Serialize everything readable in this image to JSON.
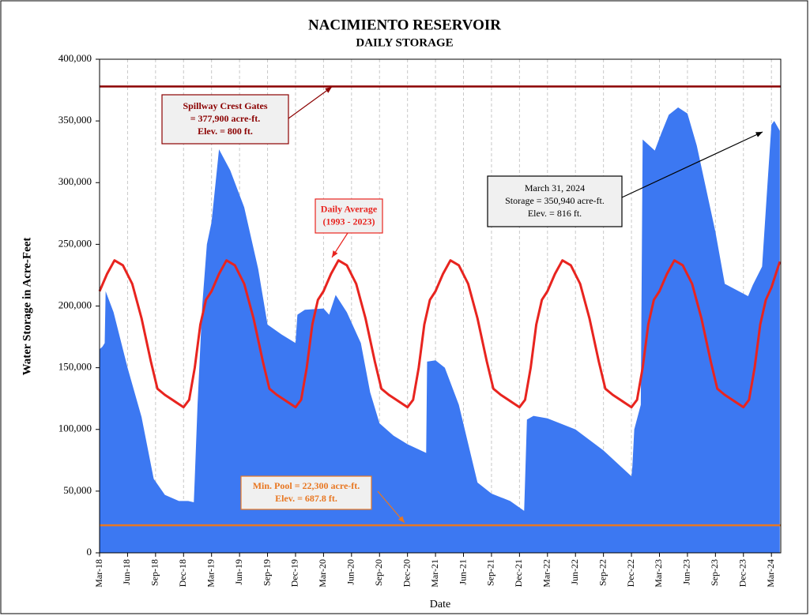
{
  "chart_data": {
    "type": "area",
    "title": "NACIMIENTO RESERVOIR",
    "subtitle": "DAILY STORAGE",
    "y_label": "Water Storage in Acre-Feet",
    "x_label": "Date",
    "xlim": [
      0,
      73
    ],
    "xticks": [
      {
        "value": 0,
        "label": "Mar-18"
      },
      {
        "value": 3,
        "label": "Jun-18"
      },
      {
        "value": 6,
        "label": "Sep-18"
      },
      {
        "value": 9,
        "label": "Dec-18"
      },
      {
        "value": 12,
        "label": "Mar-19"
      },
      {
        "value": 15,
        "label": "Jun-19"
      },
      {
        "value": 18,
        "label": "Sep-19"
      },
      {
        "value": 21,
        "label": "Dec-19"
      },
      {
        "value": 24,
        "label": "Mar-20"
      },
      {
        "value": 27,
        "label": "Jun-20"
      },
      {
        "value": 30,
        "label": "Sep-20"
      },
      {
        "value": 33,
        "label": "Dec-20"
      },
      {
        "value": 36,
        "label": "Mar-21"
      },
      {
        "value": 39,
        "label": "Jun-21"
      },
      {
        "value": 42,
        "label": "Sep-21"
      },
      {
        "value": 45,
        "label": "Dec-21"
      },
      {
        "value": 48,
        "label": "Mar-22"
      },
      {
        "value": 51,
        "label": "Jun-22"
      },
      {
        "value": 54,
        "label": "Sep-22"
      },
      {
        "value": 57,
        "label": "Dec-22"
      },
      {
        "value": 60,
        "label": "Mar-23"
      },
      {
        "value": 63,
        "label": "Jun-23"
      },
      {
        "value": 66,
        "label": "Sep-23"
      },
      {
        "value": 69,
        "label": "Dec-23"
      },
      {
        "value": 72,
        "label": "Mar-24"
      }
    ],
    "ylim": [
      0,
      400000
    ],
    "yticks": [
      0,
      {
        "value": 50000,
        "label": "50,000"
      },
      {
        "value": 100000,
        "label": "100,000"
      },
      {
        "value": 150000,
        "label": "150,000"
      },
      {
        "value": 200000,
        "label": "200,000"
      },
      {
        "value": 250000,
        "label": "250,000"
      },
      {
        "value": 300000,
        "label": "300,000"
      },
      {
        "value": 350000,
        "label": "350,000"
      },
      {
        "value": 400000,
        "label": "400,000"
      }
    ],
    "grid": true,
    "series": [
      {
        "type": "area",
        "color": "#3c78f2",
        "x": [
          0,
          0.3,
          0.55,
          0.65,
          1.5,
          3,
          4.5,
          5.8,
          7,
          8.5,
          9.5,
          10.1,
          10.2,
          10.5,
          11,
          11.5,
          12,
          12.8,
          14,
          15.5,
          17,
          18,
          19.5,
          21,
          21.2,
          22,
          24,
          24.6,
          25.3,
          26.5,
          28,
          29,
          30,
          31.5,
          33,
          35,
          35.1,
          36,
          37,
          38.5,
          40.5,
          42,
          44,
          45.5,
          45.8,
          46.5,
          48,
          51,
          54,
          57,
          57.1,
          57.3,
          58,
          58.2,
          59.5,
          60.2,
          61,
          62,
          63,
          64,
          66,
          67,
          69,
          69.5,
          70,
          71,
          71.5,
          72,
          72.3,
          72.9
        ],
        "values": [
          165000,
          167000,
          170000,
          212000,
          195000,
          150000,
          110000,
          60000,
          47000,
          42000,
          42000,
          41000,
          60000,
          120000,
          200000,
          250000,
          268000,
          327000,
          310000,
          280000,
          230000,
          185000,
          177000,
          170000,
          193000,
          197000,
          198000,
          193000,
          209000,
          195000,
          170000,
          130000,
          105000,
          95000,
          88000,
          81000,
          155000,
          156000,
          150000,
          120000,
          57000,
          48000,
          42000,
          34000,
          108000,
          111000,
          109000,
          100000,
          83000,
          62000,
          70000,
          100000,
          120000,
          335000,
          326000,
          340000,
          355000,
          361000,
          356000,
          330000,
          260000,
          218000,
          210000,
          208000,
          217000,
          232000,
          290000,
          347000,
          350000,
          342000
        ]
      },
      {
        "type": "line",
        "color": "#e8241f",
        "x": [
          0,
          0.8,
          1.6,
          2.5,
          3.5,
          4.5,
          5.5,
          6.2,
          7,
          8,
          9,
          9.6,
          10.2,
          10.8,
          11.4,
          12,
          12.8,
          13.6,
          14.5,
          15.5,
          16.5,
          17.5,
          18.2,
          19,
          20,
          21,
          21.6,
          22.2,
          22.8,
          23.4,
          24,
          24.8,
          25.6,
          26.5,
          27.5,
          28.5,
          29.5,
          30.2,
          31,
          32,
          33,
          33.6,
          34.2,
          34.8,
          35.4,
          36,
          36.8,
          37.6,
          38.5,
          39.5,
          40.5,
          41.5,
          42.2,
          43,
          44,
          45,
          45.6,
          46.2,
          46.8,
          47.4,
          48,
          48.8,
          49.6,
          50.5,
          51.5,
          52.5,
          53.5,
          54.2,
          55,
          56,
          57,
          57.6,
          58.2,
          58.8,
          59.4,
          60,
          60.8,
          61.6,
          62.5,
          63.5,
          64.5,
          65.5,
          66.2,
          67,
          68,
          69,
          69.6,
          70.2,
          70.8,
          71.4,
          72,
          72.9
        ],
        "values": [
          212000,
          226000,
          237000,
          233000,
          218000,
          190000,
          155000,
          133000,
          128000,
          123000,
          118000,
          124000,
          150000,
          185000,
          205000,
          212000,
          226000,
          237000,
          233000,
          218000,
          190000,
          155000,
          133000,
          128000,
          123000,
          118000,
          124000,
          150000,
          185000,
          205000,
          212000,
          226000,
          237000,
          233000,
          218000,
          190000,
          155000,
          133000,
          128000,
          123000,
          118000,
          124000,
          150000,
          185000,
          205000,
          212000,
          226000,
          237000,
          233000,
          218000,
          190000,
          155000,
          133000,
          128000,
          123000,
          118000,
          124000,
          150000,
          185000,
          205000,
          212000,
          226000,
          237000,
          233000,
          218000,
          190000,
          155000,
          133000,
          128000,
          123000,
          118000,
          124000,
          150000,
          185000,
          205000,
          212000,
          226000,
          237000,
          233000,
          218000,
          190000,
          155000,
          133000,
          128000,
          123000,
          118000,
          124000,
          150000,
          185000,
          205000,
          215000,
          236000
        ]
      }
    ],
    "reference_lines": [
      {
        "value": 377900,
        "color": "#8b0000"
      },
      {
        "value": 22300,
        "color": "#e87722"
      }
    ],
    "annotations": [
      {
        "lines": [
          "Spillway Crest Gates",
          "= 377,900 acre-ft.",
          "Elev. = 800 ft."
        ],
        "color": "#8b0000"
      },
      {
        "lines": [
          "Daily Average",
          "(1993 - 2023)"
        ],
        "color": "#e8241f"
      },
      {
        "lines": [
          "March 31, 2024",
          "Storage = 350,940 acre-ft.",
          "Elev. =  816 ft."
        ],
        "color": "#000000"
      },
      {
        "lines": [
          "Min. Pool = 22,300 acre-ft.",
          "Elev. = 687.8 ft."
        ],
        "color": "#e87722"
      }
    ]
  }
}
